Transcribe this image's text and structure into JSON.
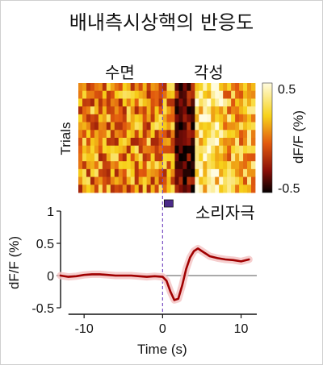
{
  "title": "배내측시상핵의 반응도",
  "heatmap_labels": {
    "sleep": "수면",
    "wake": "각성"
  },
  "stimulus_label": "소리자극",
  "colors": {
    "trace": "#a00000",
    "trace_shade": "#f4c6c6",
    "stim_marker": "#4b2a8a",
    "stim_line": "#7a4fc4"
  },
  "chart_data": [
    {
      "type": "heatmap",
      "ylabel": "Trials",
      "colorbar": {
        "label": "dF/F (%)",
        "range": [
          -0.5,
          0.5
        ],
        "ticks": [
          0.5,
          -0.5
        ]
      },
      "x": [
        -12.7,
        12.0
      ],
      "trials": 14,
      "note_stimulus_time": 0
    },
    {
      "type": "line",
      "xlabel": "Time (s)",
      "ylabel": "dF/F (%)",
      "xlim": [
        -13,
        12
      ],
      "ylim": [
        -0.5,
        1
      ],
      "xticks": [
        -10,
        0,
        10
      ],
      "yticks": [
        1,
        0.5,
        0,
        -0.5
      ],
      "x": [
        -13,
        -12,
        -11,
        -10,
        -9,
        -8,
        -7,
        -6,
        -5,
        -4,
        -3,
        -2,
        -1,
        0,
        0.5,
        1,
        1.5,
        2,
        2.5,
        3,
        3.5,
        4,
        4.5,
        5,
        6,
        7,
        8,
        9,
        10,
        11
      ],
      "y": [
        0.0,
        -0.02,
        -0.01,
        0.01,
        0.02,
        0.02,
        0.01,
        0.0,
        0.0,
        0.0,
        -0.01,
        -0.02,
        -0.01,
        -0.02,
        -0.08,
        -0.25,
        -0.38,
        -0.36,
        -0.15,
        0.1,
        0.28,
        0.38,
        0.42,
        0.38,
        0.3,
        0.27,
        0.25,
        0.24,
        0.22,
        0.25
      ]
    }
  ]
}
